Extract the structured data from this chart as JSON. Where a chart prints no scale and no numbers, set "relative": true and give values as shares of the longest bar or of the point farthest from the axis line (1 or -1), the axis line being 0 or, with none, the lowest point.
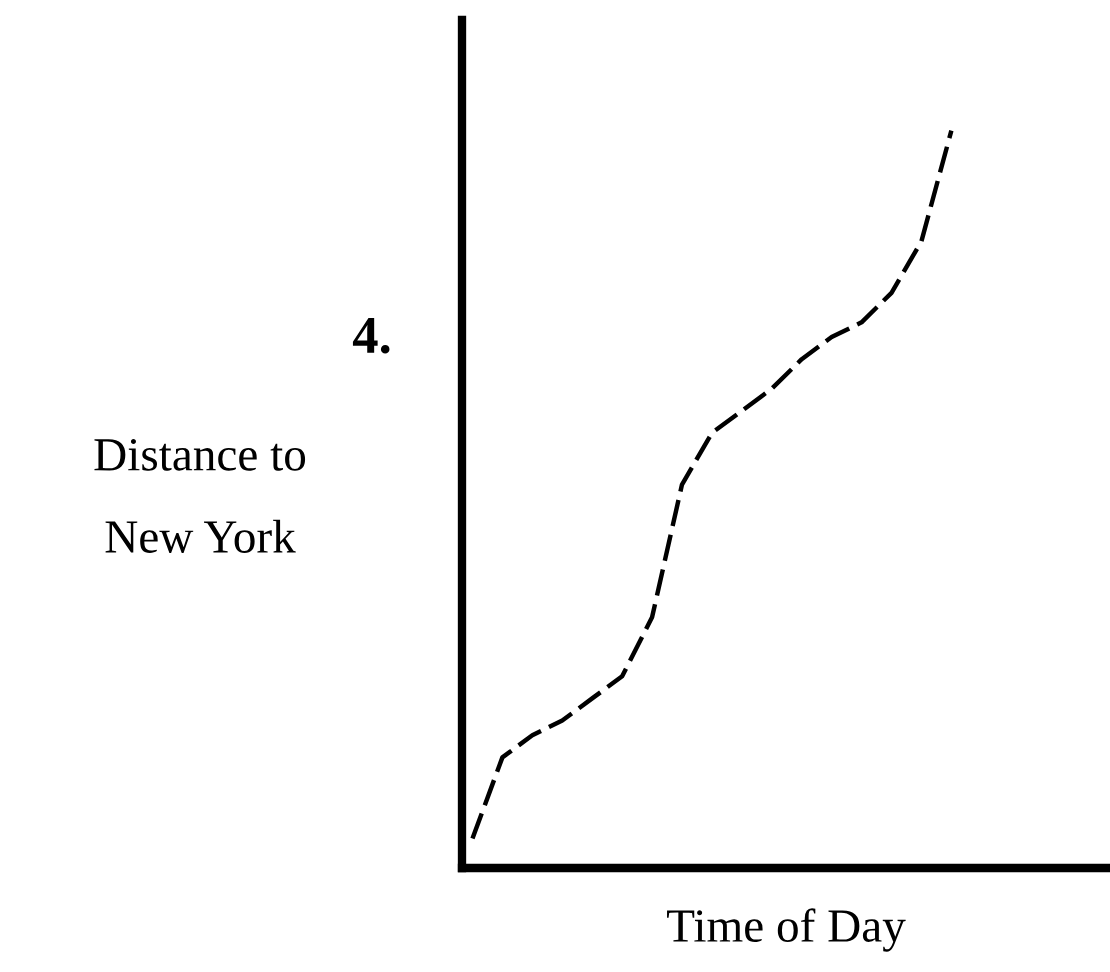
{
  "chart_data": {
    "type": "line",
    "relative": true,
    "xlabel": "Time of Day",
    "ylabel": "Distance to\nNew York",
    "annotations": [
      "4."
    ],
    "categories": [
      null,
      null,
      null,
      null,
      null,
      null,
      null,
      null,
      null,
      null,
      null,
      null,
      null,
      null,
      null,
      null,
      null
    ],
    "series": [
      {
        "color": "#000000",
        "values": [
          0.04,
          0.15,
          0.18,
          0.2,
          0.23,
          0.26,
          0.34,
          0.52,
          0.59,
          0.62,
          0.65,
          0.69,
          0.72,
          0.74,
          0.78,
          0.85,
          1
        ]
      }
    ],
    "line_style": "dashed",
    "marker": "none",
    "grid": false,
    "legend": false
  }
}
